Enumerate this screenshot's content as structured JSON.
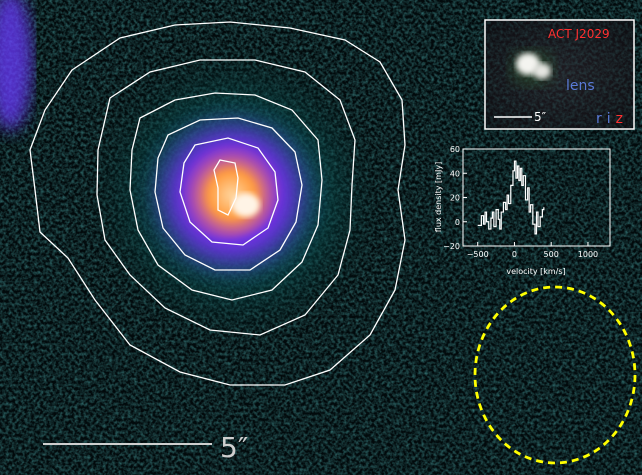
{
  "main_image": {
    "scale_bar_label": "5″"
  },
  "inset_optical": {
    "target_name": "ACT J2029",
    "lens_label": "lens",
    "scale_bar_label": "5″",
    "filters": [
      {
        "name": "r",
        "color": "#5a7bd8"
      },
      {
        "name": "i",
        "color": "#5a7bd8"
      },
      {
        "name": "z",
        "color": "#ff3030"
      }
    ],
    "colors": {
      "target": "#ff3030",
      "lens": "#5a7bd8",
      "frame": "#ffffff"
    }
  },
  "spectrum": {
    "ylabel": "flux density [mJy]",
    "xlabel": "velocity [km/s]",
    "xticks": [
      "−500",
      "0",
      "500",
      "1000"
    ],
    "yticks": [
      "−20",
      "0",
      "20",
      "40",
      "60"
    ]
  },
  "chart_data": {
    "type": "line",
    "title": "",
    "xlabel": "velocity [km/s]",
    "ylabel": "flux density [mJy]",
    "xlim": [
      -700,
      1300
    ],
    "ylim": [
      -20,
      60
    ],
    "series": [
      {
        "x": [
          -500,
          -450,
          -420,
          -400,
          -380,
          -350,
          -320,
          -300,
          -280,
          -250,
          -220,
          -200,
          -180,
          -150,
          -120,
          -100,
          -80,
          -50,
          -20,
          0,
          20,
          40,
          60,
          80,
          100,
          120,
          150,
          180,
          200,
          220,
          250,
          280,
          300,
          320,
          350,
          380,
          400
        ],
        "y": [
          -3,
          5,
          -2,
          8,
          0,
          -6,
          3,
          8,
          -4,
          10,
          2,
          -6,
          8,
          16,
          10,
          22,
          15,
          30,
          42,
          50,
          36,
          46,
          34,
          44,
          30,
          38,
          18,
          28,
          8,
          14,
          -2,
          -10,
          8,
          -4,
          4,
          10,
          12
        ]
      }
    ]
  },
  "overlay": {
    "beam_color": "#ffff00",
    "contour_color": "#ffffff"
  }
}
